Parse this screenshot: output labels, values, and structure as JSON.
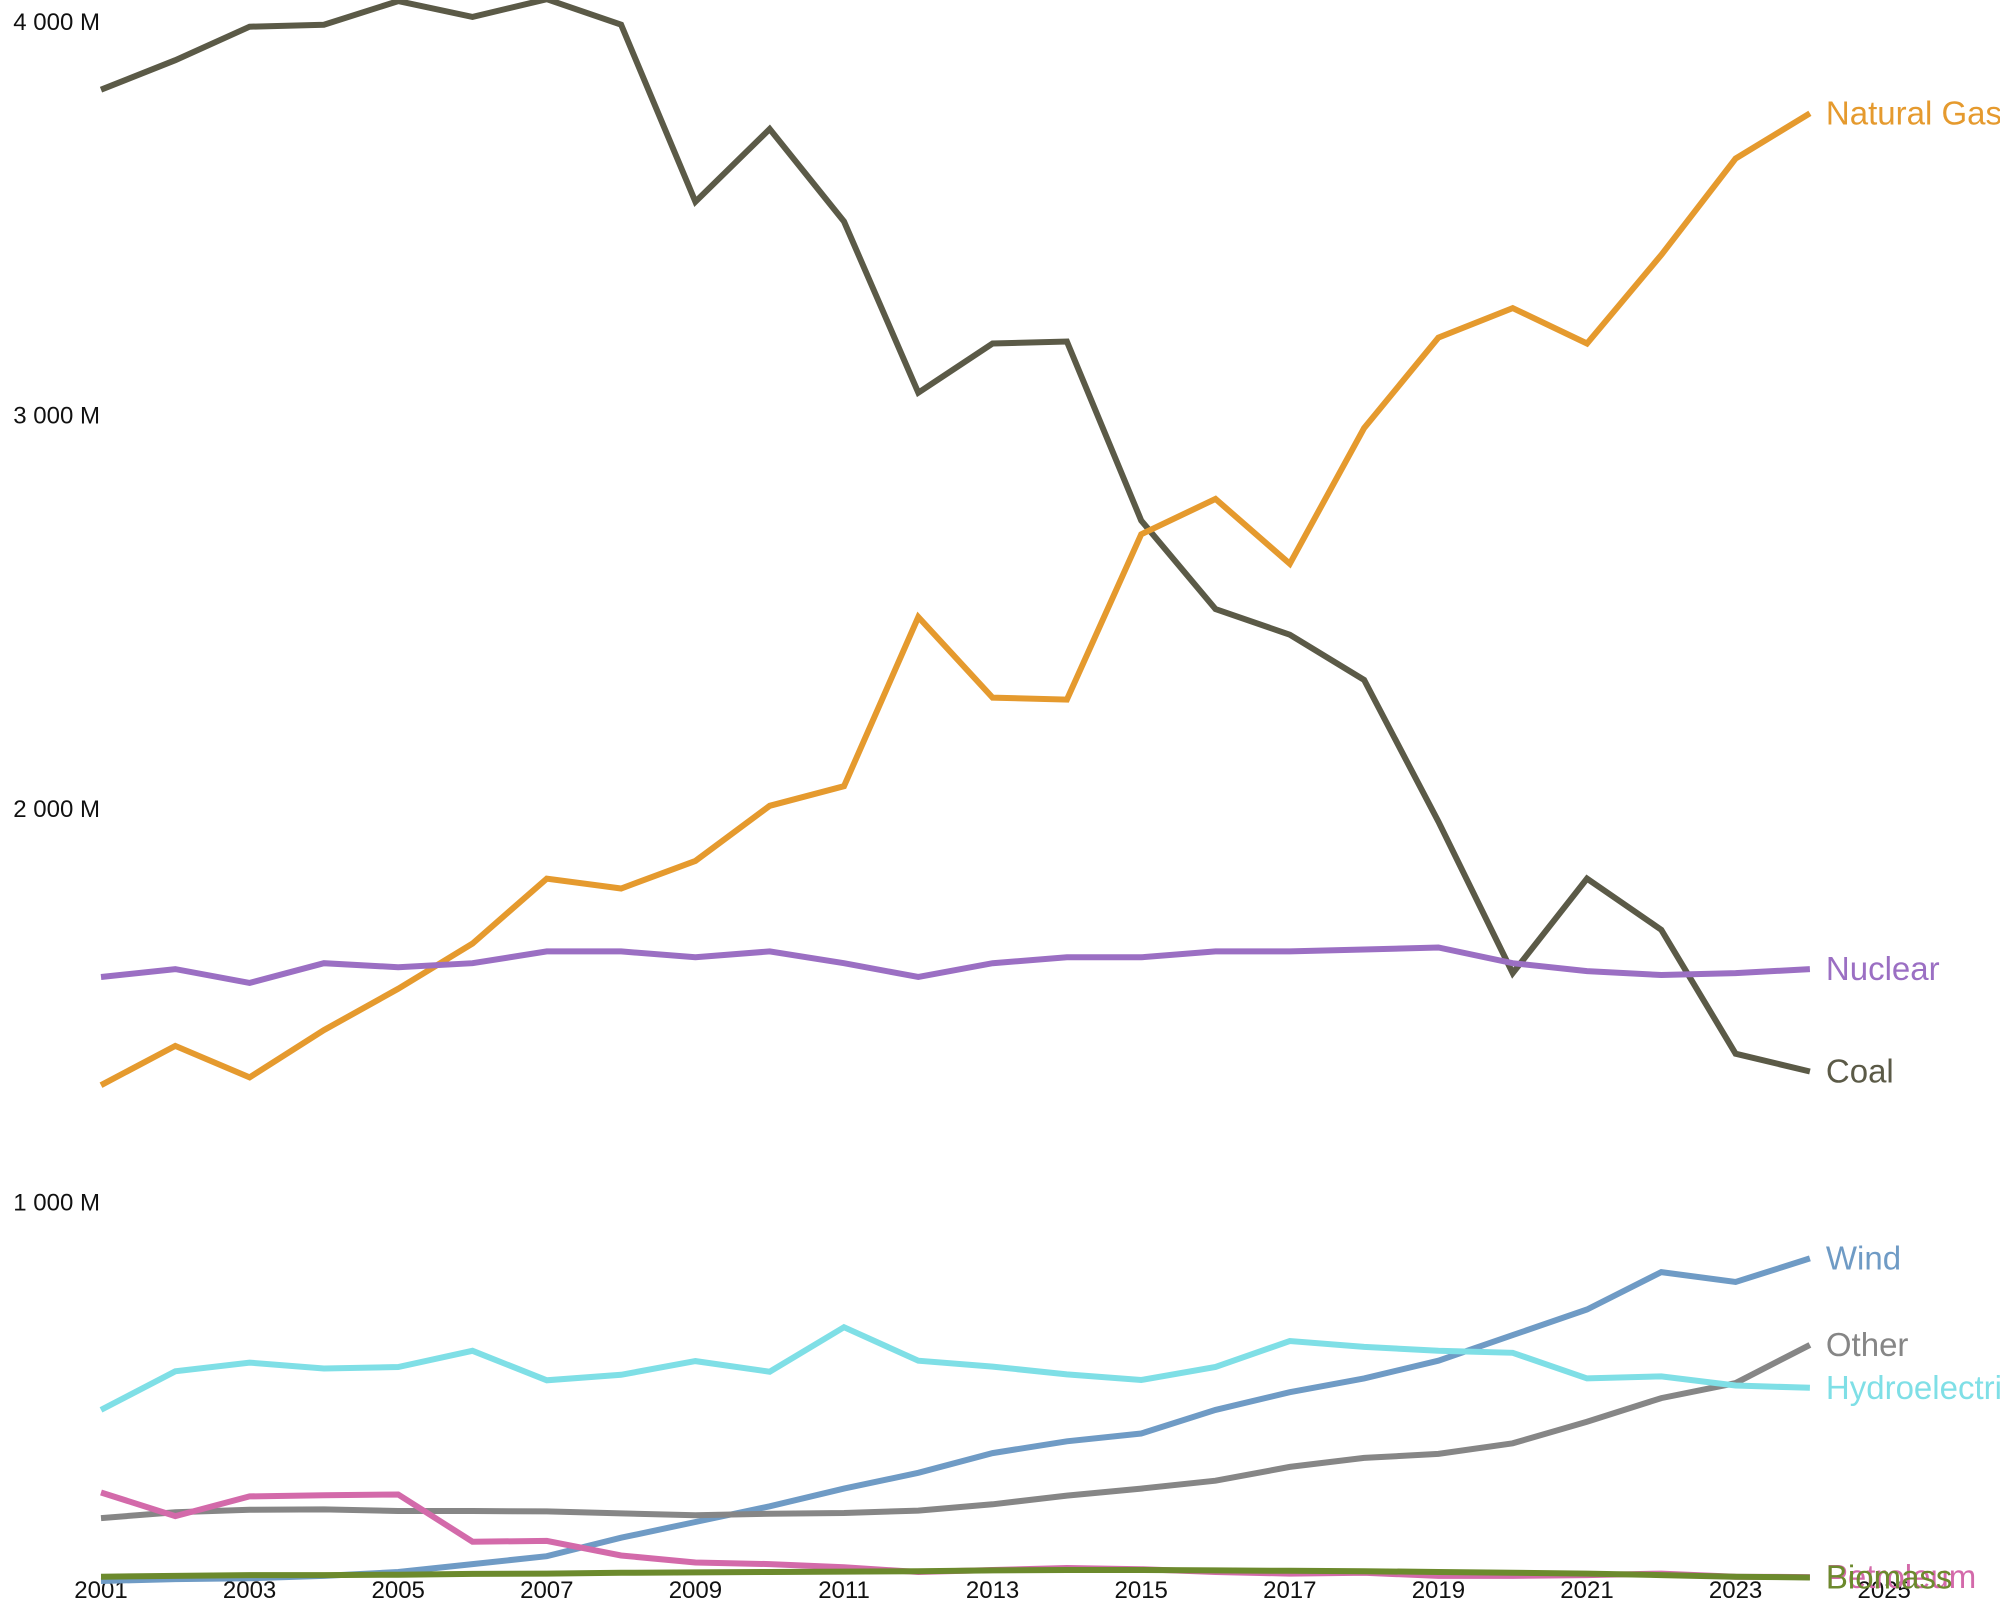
{
  "chart_data": {
    "type": "line",
    "title": "",
    "xlabel": "",
    "ylabel": "",
    "x_tick_labels": [
      "2001",
      "2003",
      "2005",
      "2007",
      "2009",
      "2011",
      "2013",
      "2015",
      "2017",
      "2019",
      "2021",
      "2023",
      "2025"
    ],
    "y_tick_labels": [
      "1 000 M",
      "2 000 M",
      "3 000 M",
      "4 000 M"
    ],
    "xlim": [
      2001,
      2025
    ],
    "ylim": [
      0,
      4000
    ],
    "grid": false,
    "legend": "inline labels at line ends",
    "x": [
      2001,
      2002,
      2003,
      2004,
      2005,
      2006,
      2007,
      2008,
      2009,
      2010,
      2011,
      2012,
      2013,
      2014,
      2015,
      2016,
      2017,
      2018,
      2019,
      2020,
      2021,
      2022,
      2023,
      2024
    ],
    "series": [
      {
        "name": "Coal",
        "color": "#5b5a47",
        "values": [
          3795,
          3870,
          3955,
          3960,
          4020,
          3980,
          4025,
          3960,
          3510,
          3695,
          3460,
          3025,
          3150,
          3155,
          2700,
          2475,
          2410,
          2295,
          1935,
          1550,
          1790,
          1660,
          1345,
          1300
        ]
      },
      {
        "name": "Natural Gas",
        "color": "#e59a2e",
        "values": [
          1265,
          1365,
          1285,
          1405,
          1510,
          1625,
          1790,
          1765,
          1835,
          1975,
          2025,
          2455,
          2250,
          2245,
          2665,
          2755,
          2590,
          2935,
          3165,
          3240,
          3150,
          3375,
          3620,
          3735
        ]
      },
      {
        "name": "Nuclear",
        "color": "#9b6fc3",
        "values": [
          1540,
          1560,
          1525,
          1575,
          1565,
          1575,
          1605,
          1605,
          1590,
          1605,
          1575,
          1540,
          1575,
          1590,
          1590,
          1605,
          1605,
          1610,
          1615,
          1575,
          1555,
          1545,
          1550,
          1560
        ]
      },
      {
        "name": "Wind",
        "color": "#6f9bc5",
        "values": [
          5,
          10,
          12,
          18,
          28,
          48,
          68,
          115,
          155,
          195,
          240,
          280,
          330,
          360,
          380,
          440,
          485,
          520,
          565,
          630,
          695,
          790,
          765,
          825
        ]
      },
      {
        "name": "Other",
        "color": "#868686",
        "values": [
          165,
          180,
          186,
          187,
          183,
          183,
          182,
          177,
          172,
          176,
          178,
          184,
          200,
          222,
          240,
          260,
          295,
          318,
          328,
          355,
          410,
          470,
          508,
          605
        ]
      },
      {
        "name": "Hydroelectric",
        "color": "#7fdfe6",
        "values": [
          440,
          538,
          560,
          545,
          549,
          590,
          515,
          529,
          564,
          537,
          650,
          565,
          550,
          530,
          516,
          549,
          615,
          600,
          590,
          585,
          520,
          525,
          502,
          496
        ]
      },
      {
        "name": "Petroleum",
        "color": "#d36aaa",
        "values": [
          230,
          170,
          220,
          223,
          225,
          105,
          107,
          70,
          52,
          48,
          40,
          28,
          33,
          38,
          35,
          28,
          24,
          26,
          18,
          18,
          20,
          24,
          16,
          15
        ]
      },
      {
        "name": "Biomass",
        "color": "#6c8a2d",
        "values": [
          16,
          18,
          20,
          20,
          21,
          23,
          24,
          26,
          27,
          28,
          29,
          30,
          32,
          33,
          33,
          32,
          31,
          30,
          28,
          26,
          24,
          20,
          16,
          14
        ]
      }
    ]
  }
}
